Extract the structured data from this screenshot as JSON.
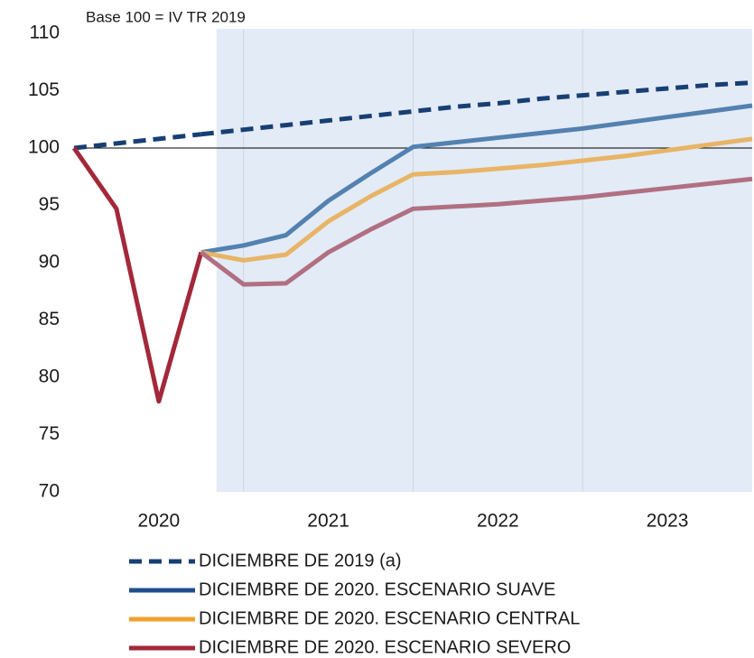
{
  "chart_data": {
    "type": "line",
    "subtitle": "Base 100 = IV TR 2019",
    "categories": [
      null,
      null,
      "2020",
      null,
      null,
      null,
      "2021",
      null,
      null,
      null,
      "2022",
      null,
      null,
      null,
      "2023",
      null,
      null
    ],
    "ylim": [
      70,
      110
    ],
    "yticks": [
      70,
      75,
      80,
      85,
      90,
      95,
      100,
      105,
      110
    ],
    "hline": 100,
    "series": [
      {
        "name": "DICIEMBRE DE 2019 (a)",
        "color": "#183f73",
        "dashed": true,
        "values": [
          100,
          100.4,
          100.8,
          101.2,
          101.6,
          102.0,
          102.4,
          102.8,
          103.2,
          103.6,
          103.9,
          104.3,
          104.6,
          104.9,
          105.2,
          105.5,
          105.7
        ]
      },
      {
        "name": "DICIEMBRE DE 2020. ESCENARIO SUAVE",
        "color": "#1f4e8c",
        "forecast_color": "#5381b0",
        "values": [
          null,
          null,
          null,
          90.9,
          91.5,
          92.4,
          95.4,
          97.8,
          100.1,
          100.5,
          100.9,
          101.3,
          101.7,
          102.2,
          102.7,
          103.2,
          103.7
        ]
      },
      {
        "name": "DICIEMBRE DE 2020. ESCENARIO CENTRAL",
        "color": "#f0a030",
        "forecast_color": "#e8b466",
        "values": [
          null,
          null,
          null,
          90.9,
          90.2,
          90.7,
          93.6,
          95.8,
          97.7,
          97.9,
          98.2,
          98.5,
          98.9,
          99.3,
          99.8,
          100.3,
          100.8
        ]
      },
      {
        "name": "DICIEMBRE DE 2020. ESCENARIO SEVERO",
        "color": "#a3283a",
        "forecast_color": "#b07082",
        "values": [
          100,
          94.7,
          77.9,
          90.9,
          88.1,
          88.2,
          90.9,
          92.9,
          94.7,
          94.9,
          95.1,
          95.4,
          95.7,
          96.1,
          96.5,
          96.9,
          97.3
        ]
      }
    ]
  }
}
